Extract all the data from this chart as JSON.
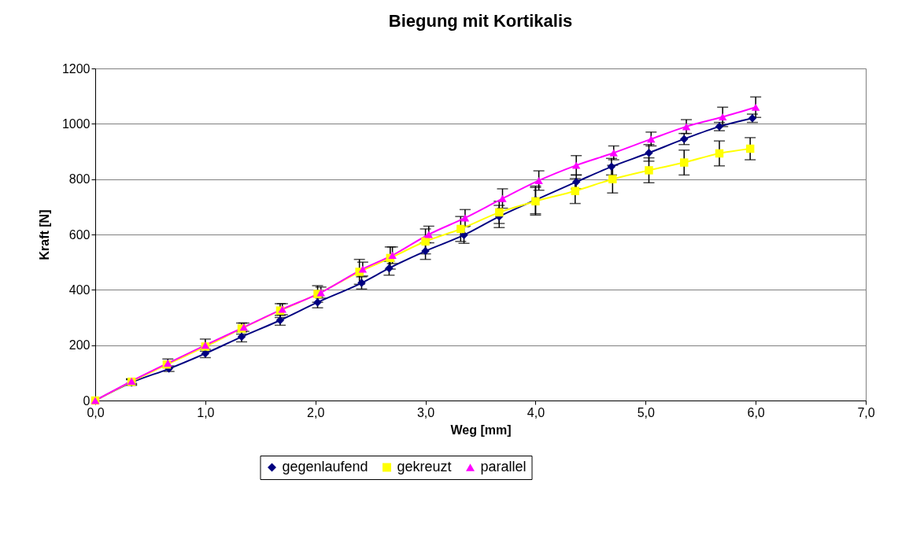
{
  "chart_data": {
    "type": "line",
    "title": "Biegung mit Kortikalis",
    "xlabel": "Weg [mm]",
    "ylabel": "Kraft [N]",
    "xlim": [
      0,
      7
    ],
    "xticks": [
      {
        "value": 0,
        "label": "0,0"
      },
      {
        "value": 1,
        "label": "1,0"
      },
      {
        "value": 2,
        "label": "2,0"
      },
      {
        "value": 3,
        "label": "3,0"
      },
      {
        "value": 4,
        "label": "4,0"
      },
      {
        "value": 5,
        "label": "5,0"
      },
      {
        "value": 6,
        "label": "6,0"
      },
      {
        "value": 7,
        "label": "7,0"
      }
    ],
    "ylim": [
      0,
      1200
    ],
    "yticks": [
      0,
      200,
      400,
      600,
      800,
      1000,
      1200
    ],
    "grid": "y",
    "legend": "bottom",
    "series": [
      {
        "name": "gegenlaufend",
        "color": "#000080",
        "marker": "diamond",
        "x": [
          0,
          0.33,
          0.67,
          1.0,
          1.33,
          1.68,
          2.02,
          2.42,
          2.67,
          3.0,
          3.35,
          3.67,
          4.0,
          4.37,
          4.69,
          5.03,
          5.35,
          5.67,
          5.97
        ],
        "values": [
          0,
          65,
          115,
          170,
          230,
          290,
          355,
          425,
          478,
          540,
          598,
          665,
          725,
          790,
          845,
          895,
          945,
          990,
          1020
        ],
        "errors": [
          null,
          10,
          10,
          15,
          18,
          18,
          20,
          22,
          25,
          30,
          30,
          40,
          50,
          25,
          30,
          30,
          20,
          15,
          15
        ]
      },
      {
        "name": "gekreuzt",
        "color": "#ffff00",
        "marker": "square",
        "x": [
          0,
          0.33,
          0.65,
          1.0,
          1.33,
          1.68,
          2.02,
          2.4,
          2.68,
          3.0,
          3.32,
          3.67,
          4.0,
          4.36,
          4.7,
          5.03,
          5.35,
          5.67,
          5.95
        ],
        "values": [
          0,
          68,
          130,
          195,
          260,
          325,
          385,
          465,
          515,
          575,
          620,
          680,
          720,
          757,
          800,
          832,
          860,
          893,
          910
        ],
        "errors": [
          null,
          10,
          null,
          null,
          20,
          25,
          30,
          45,
          40,
          45,
          45,
          40,
          50,
          45,
          50,
          45,
          45,
          45,
          40
        ]
      },
      {
        "name": "parallel",
        "color": "#ff00ff",
        "marker": "triangle",
        "x": [
          0,
          0.33,
          0.66,
          1.0,
          1.35,
          1.7,
          2.05,
          2.43,
          2.7,
          3.03,
          3.36,
          3.7,
          4.03,
          4.37,
          4.71,
          5.05,
          5.37,
          5.7,
          6.0
        ],
        "values": [
          0,
          70,
          135,
          200,
          265,
          330,
          390,
          475,
          525,
          600,
          660,
          730,
          795,
          850,
          895,
          945,
          990,
          1025,
          1060
        ],
        "errors": [
          null,
          8,
          15,
          22,
          15,
          20,
          20,
          25,
          30,
          30,
          30,
          35,
          35,
          35,
          25,
          25,
          25,
          35,
          37
        ]
      }
    ]
  }
}
